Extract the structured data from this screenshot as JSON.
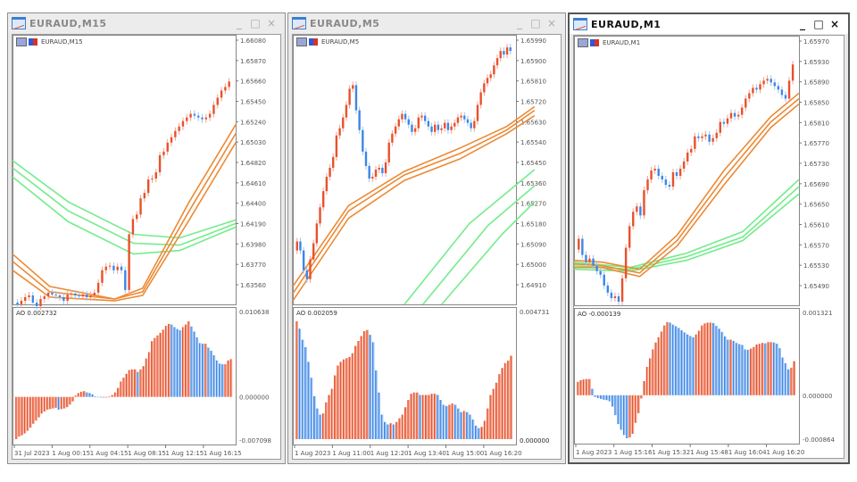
{
  "colors": {
    "bull": "#e8512b",
    "bull_light": "#f2a08a",
    "bear": "#3d86e6",
    "bear_light": "#9cc3f2",
    "ema_orange": "#ec8a35",
    "ema_green": "#73ec8a",
    "grid_text": "#555555"
  },
  "windows": [
    {
      "id": "m15",
      "title": "EURAUD,M15",
      "symbol_label": "EURAUD,M15",
      "active": false,
      "buttons": {
        "minimize": "_",
        "maximize": "□",
        "close": "×"
      },
      "price_axis": [
        "1.66080",
        "1.65870",
        "1.65660",
        "1.65450",
        "1.65240",
        "1.65030",
        "1.64820",
        "1.64610",
        "1.64400",
        "1.64190",
        "1.63980",
        "1.63770",
        "1.63560"
      ],
      "ao": {
        "label": "AO 0.002732",
        "max": "0.010638",
        "zero": "0.000000",
        "min": "-0.007098"
      },
      "time_axis": [
        "31 Jul 2023",
        "1 Aug 00:15",
        "1 Aug 04:15",
        "1 Aug 08:15",
        "1 Aug 12:15",
        "1 Aug 16:15"
      ]
    },
    {
      "id": "m5",
      "title": "EURAUD,M5",
      "symbol_label": "EURAUD,M5",
      "active": false,
      "buttons": {
        "minimize": "_",
        "maximize": "□",
        "close": "×"
      },
      "price_axis": [
        "1.65990",
        "1.65900",
        "1.65810",
        "1.65720",
        "1.65630",
        "1.65540",
        "1.65450",
        "1.65360",
        "1.65270",
        "1.65180",
        "1.65090",
        "1.65000",
        "1.64910"
      ],
      "ao": {
        "label": "AO 0.002059",
        "max": "0.004731",
        "zero": "",
        "min": "0.000000"
      },
      "time_axis": [
        "1 Aug 2023",
        "1 Aug 11:00",
        "1 Aug 12:20",
        "1 Aug 13:40",
        "1 Aug 15:00",
        "1 Aug 16:20"
      ]
    },
    {
      "id": "m1",
      "title": "EURAUD,M1",
      "symbol_label": "EURAUD,M1",
      "active": true,
      "buttons": {
        "minimize": "_",
        "maximize": "□",
        "close": "×"
      },
      "price_axis": [
        "1.65970",
        "1.65930",
        "1.65890",
        "1.65850",
        "1.65810",
        "1.65770",
        "1.65730",
        "1.65690",
        "1.65650",
        "1.65610",
        "1.65570",
        "1.65530",
        "1.65490"
      ],
      "ao": {
        "label": "AO -0.000139",
        "max": "0.001321",
        "zero": "0.000000",
        "min": "-0.000864"
      },
      "time_axis": [
        "1 Aug 2023",
        "1 Aug 15:16",
        "1 Aug 15:32",
        "1 Aug 15:48",
        "1 Aug 16:04",
        "1 Aug 16:20"
      ]
    }
  ],
  "chart_series": {
    "m15": {
      "close_path": [
        298,
        300,
        296,
        292,
        290,
        298,
        302,
        294,
        291,
        287,
        289,
        290,
        292,
        296,
        289,
        288,
        290,
        291,
        289,
        292,
        290,
        287,
        276,
        262,
        258,
        257,
        262,
        258,
        262,
        284,
        222,
        205,
        200,
        182,
        176,
        161,
        160,
        153,
        134,
        130,
        120,
        114,
        107,
        102,
        96,
        92,
        88,
        90,
        92,
        94,
        92,
        88,
        78,
        70,
        62,
        58,
        52
      ],
      "ema_orange": [
        [
          0,
          244,
          40,
          280,
          110,
          294,
          140,
          282,
          190,
          186,
          240,
          100
        ],
        [
          0,
          252,
          40,
          286,
          110,
          294,
          140,
          286,
          190,
          196,
          240,
          110
        ],
        [
          0,
          262,
          40,
          292,
          110,
          296,
          140,
          290,
          190,
          206,
          240,
          120
        ]
      ],
      "ema_green": [
        [
          0,
          140,
          60,
          186,
          130,
          222,
          180,
          226,
          240,
          206
        ],
        [
          0,
          148,
          60,
          196,
          130,
          232,
          180,
          234,
          240,
          210
        ],
        [
          0,
          158,
          60,
          208,
          130,
          244,
          180,
          240,
          240,
          214
        ]
      ],
      "ao": [
        -0.66,
        -0.62,
        -0.6,
        -0.57,
        -0.53,
        -0.48,
        -0.42,
        -0.37,
        -0.32,
        -0.26,
        -0.23,
        -0.2,
        -0.19,
        -0.18,
        -0.17,
        -0.2,
        -0.19,
        -0.18,
        -0.16,
        -0.12,
        -0.07,
        0.02,
        0.06,
        0.08,
        0.09,
        0.07,
        0.06,
        0.04,
        0.01,
        0.0,
        -0.01,
        -0.01,
        -0.01,
        0.01,
        0.03,
        0.07,
        0.14,
        0.24,
        0.3,
        0.36,
        0.42,
        0.43,
        0.43,
        0.39,
        0.43,
        0.48,
        0.6,
        0.7,
        0.87,
        0.92,
        0.96,
        1.0,
        1.05,
        1.11,
        1.14,
        1.13,
        1.09,
        1.06,
        1.04,
        1.09,
        1.13,
        1.18,
        1.1,
        1.02,
        0.93,
        0.84,
        0.83,
        0.83,
        0.77,
        0.72,
        0.65,
        0.57,
        0.52,
        0.51,
        0.51,
        0.57,
        0.59
      ]
    },
    "m5": {
      "close_path": [
        240,
        230,
        240,
        262,
        272,
        250,
        232,
        210,
        192,
        174,
        158,
        148,
        136,
        112,
        104,
        92,
        78,
        60,
        56,
        84,
        106,
        130,
        146,
        160,
        158,
        150,
        148,
        154,
        142,
        120,
        110,
        102,
        94,
        88,
        94,
        100,
        108,
        104,
        92,
        90,
        96,
        102,
        108,
        100,
        106,
        104,
        98,
        106,
        102,
        98,
        92,
        90,
        94,
        98,
        104,
        96,
        78,
        64,
        54,
        48,
        44,
        34,
        26,
        18,
        22,
        14,
        18
      ],
      "ema_orange": [
        [
          0,
          280,
          60,
          190,
          120,
          152,
          180,
          126,
          230,
          102,
          260,
          80
        ],
        [
          0,
          288,
          60,
          196,
          120,
          156,
          180,
          132,
          230,
          106,
          260,
          84
        ],
        [
          0,
          296,
          60,
          204,
          120,
          162,
          180,
          138,
          230,
          110,
          260,
          90
        ]
      ],
      "ema_green": [
        [
          120,
          300,
          190,
          210,
          260,
          150
        ],
        [
          140,
          300,
          210,
          212,
          260,
          168
        ],
        [
          160,
          300,
          225,
          222,
          260,
          186
        ]
      ],
      "ao": [
        0.96,
        0.9,
        0.81,
        0.75,
        0.63,
        0.5,
        0.35,
        0.25,
        0.2,
        0.21,
        0.3,
        0.36,
        0.41,
        0.52,
        0.6,
        0.63,
        0.65,
        0.66,
        0.67,
        0.7,
        0.76,
        0.8,
        0.84,
        0.88,
        0.89,
        0.85,
        0.79,
        0.56,
        0.38,
        0.2,
        0.14,
        0.12,
        0.13,
        0.12,
        0.14,
        0.17,
        0.2,
        0.26,
        0.32,
        0.37,
        0.38,
        0.38,
        0.36,
        0.36,
        0.36,
        0.36,
        0.37,
        0.37,
        0.36,
        0.32,
        0.28,
        0.27,
        0.28,
        0.29,
        0.28,
        0.25,
        0.22,
        0.23,
        0.22,
        0.2,
        0.16,
        0.11,
        0.09,
        0.1,
        0.15,
        0.25,
        0.36,
        0.41,
        0.46,
        0.53,
        0.58,
        0.62,
        0.64,
        0.68
      ]
    },
    "m1": {
      "close_path": [
        238,
        226,
        244,
        252,
        248,
        256,
        262,
        266,
        278,
        286,
        292,
        290,
        296,
        270,
        236,
        212,
        196,
        190,
        200,
        172,
        160,
        150,
        148,
        156,
        160,
        166,
        168,
        152,
        156,
        148,
        140,
        130,
        126,
        112,
        114,
        112,
        110,
        118,
        114,
        108,
        96,
        98,
        92,
        86,
        90,
        88,
        80,
        70,
        64,
        58,
        60,
        54,
        50,
        48,
        52,
        56,
        60,
        66,
        70,
        50,
        32
      ],
      "ema_orange": [
        [
          0,
          250,
          30,
          252,
          70,
          260,
          110,
          222,
          160,
          150,
          210,
          90,
          240,
          64
        ],
        [
          0,
          254,
          30,
          256,
          70,
          264,
          110,
          228,
          160,
          158,
          210,
          96,
          240,
          70
        ],
        [
          0,
          258,
          30,
          258,
          70,
          268,
          110,
          234,
          160,
          166,
          210,
          102,
          240,
          76
        ]
      ],
      "ema_green": [
        [
          0,
          252,
          60,
          258,
          120,
          242,
          180,
          218,
          240,
          160
        ],
        [
          0,
          256,
          60,
          260,
          120,
          246,
          180,
          224,
          240,
          168
        ],
        [
          0,
          260,
          60,
          262,
          120,
          250,
          180,
          228,
          240,
          176
        ]
      ],
      "ao": [
        0.33,
        0.37,
        0.39,
        0.4,
        0.4,
        0.16,
        -0.04,
        -0.07,
        -0.09,
        -0.11,
        -0.12,
        -0.15,
        -0.28,
        -0.49,
        -0.71,
        -0.85,
        -0.98,
        -1.06,
        -1.04,
        -0.95,
        -0.68,
        -0.44,
        -0.08,
        0.35,
        0.7,
        0.91,
        1.13,
        1.3,
        1.43,
        1.57,
        1.72,
        1.8,
        1.79,
        1.74,
        1.7,
        1.66,
        1.6,
        1.55,
        1.5,
        1.46,
        1.43,
        1.5,
        1.59,
        1.72,
        1.77,
        1.79,
        1.79,
        1.78,
        1.71,
        1.64,
        1.56,
        1.45,
        1.37,
        1.37,
        1.34,
        1.29,
        1.26,
        1.24,
        1.13,
        1.12,
        1.15,
        1.19,
        1.25,
        1.27,
        1.29,
        1.28,
        1.31,
        1.31,
        1.3,
        1.27,
        1.16,
        0.93,
        0.79,
        0.64,
        0.68,
        0.84
      ]
    }
  }
}
